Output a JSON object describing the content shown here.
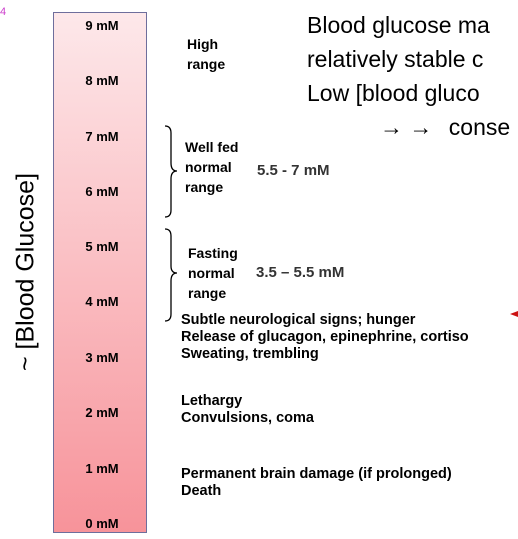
{
  "slide_number": "4",
  "axis_label": "~ [Blood Glucose]",
  "scale": {
    "unit": "mM",
    "ticks": [
      "9 mM",
      "8 mM",
      "7 mM",
      "6 mM",
      "5 mM",
      "4 mM",
      "3 mM",
      "2 mM",
      "1 mM",
      "0 mM"
    ],
    "gradient_top": "#fde8ea",
    "gradient_bottom": "#f7939a",
    "border_color": "#6e6e9c"
  },
  "ranges": {
    "high": {
      "label": "High\nrange"
    },
    "well_fed": {
      "label": "Well fed\nnormal\nrange",
      "value": "5.5 - 7 mM"
    },
    "fasting": {
      "label": "Fasting\nnormal\nrange",
      "value": "3.5 – 5.5 mM"
    }
  },
  "effects": {
    "below_4": "Subtle neurological signs; hunger\nRelease of glucagon, epinephrine, cortiso\nSweating, trembling",
    "below_2_5": "Lethargy\nConvulsions, coma",
    "below_1": "Permanent brain damage (if prolonged)\nDeath"
  },
  "headline": {
    "line1": "Blood glucose ma",
    "line2": "relatively stable c",
    "line3": "Low [blood gluco",
    "line4_arrows": "→ →",
    "line4_text": "conse"
  },
  "colors": {
    "bracket": "#000000",
    "pointer_arrow": "#cc1111",
    "slide_number": "#cc3ecc"
  }
}
